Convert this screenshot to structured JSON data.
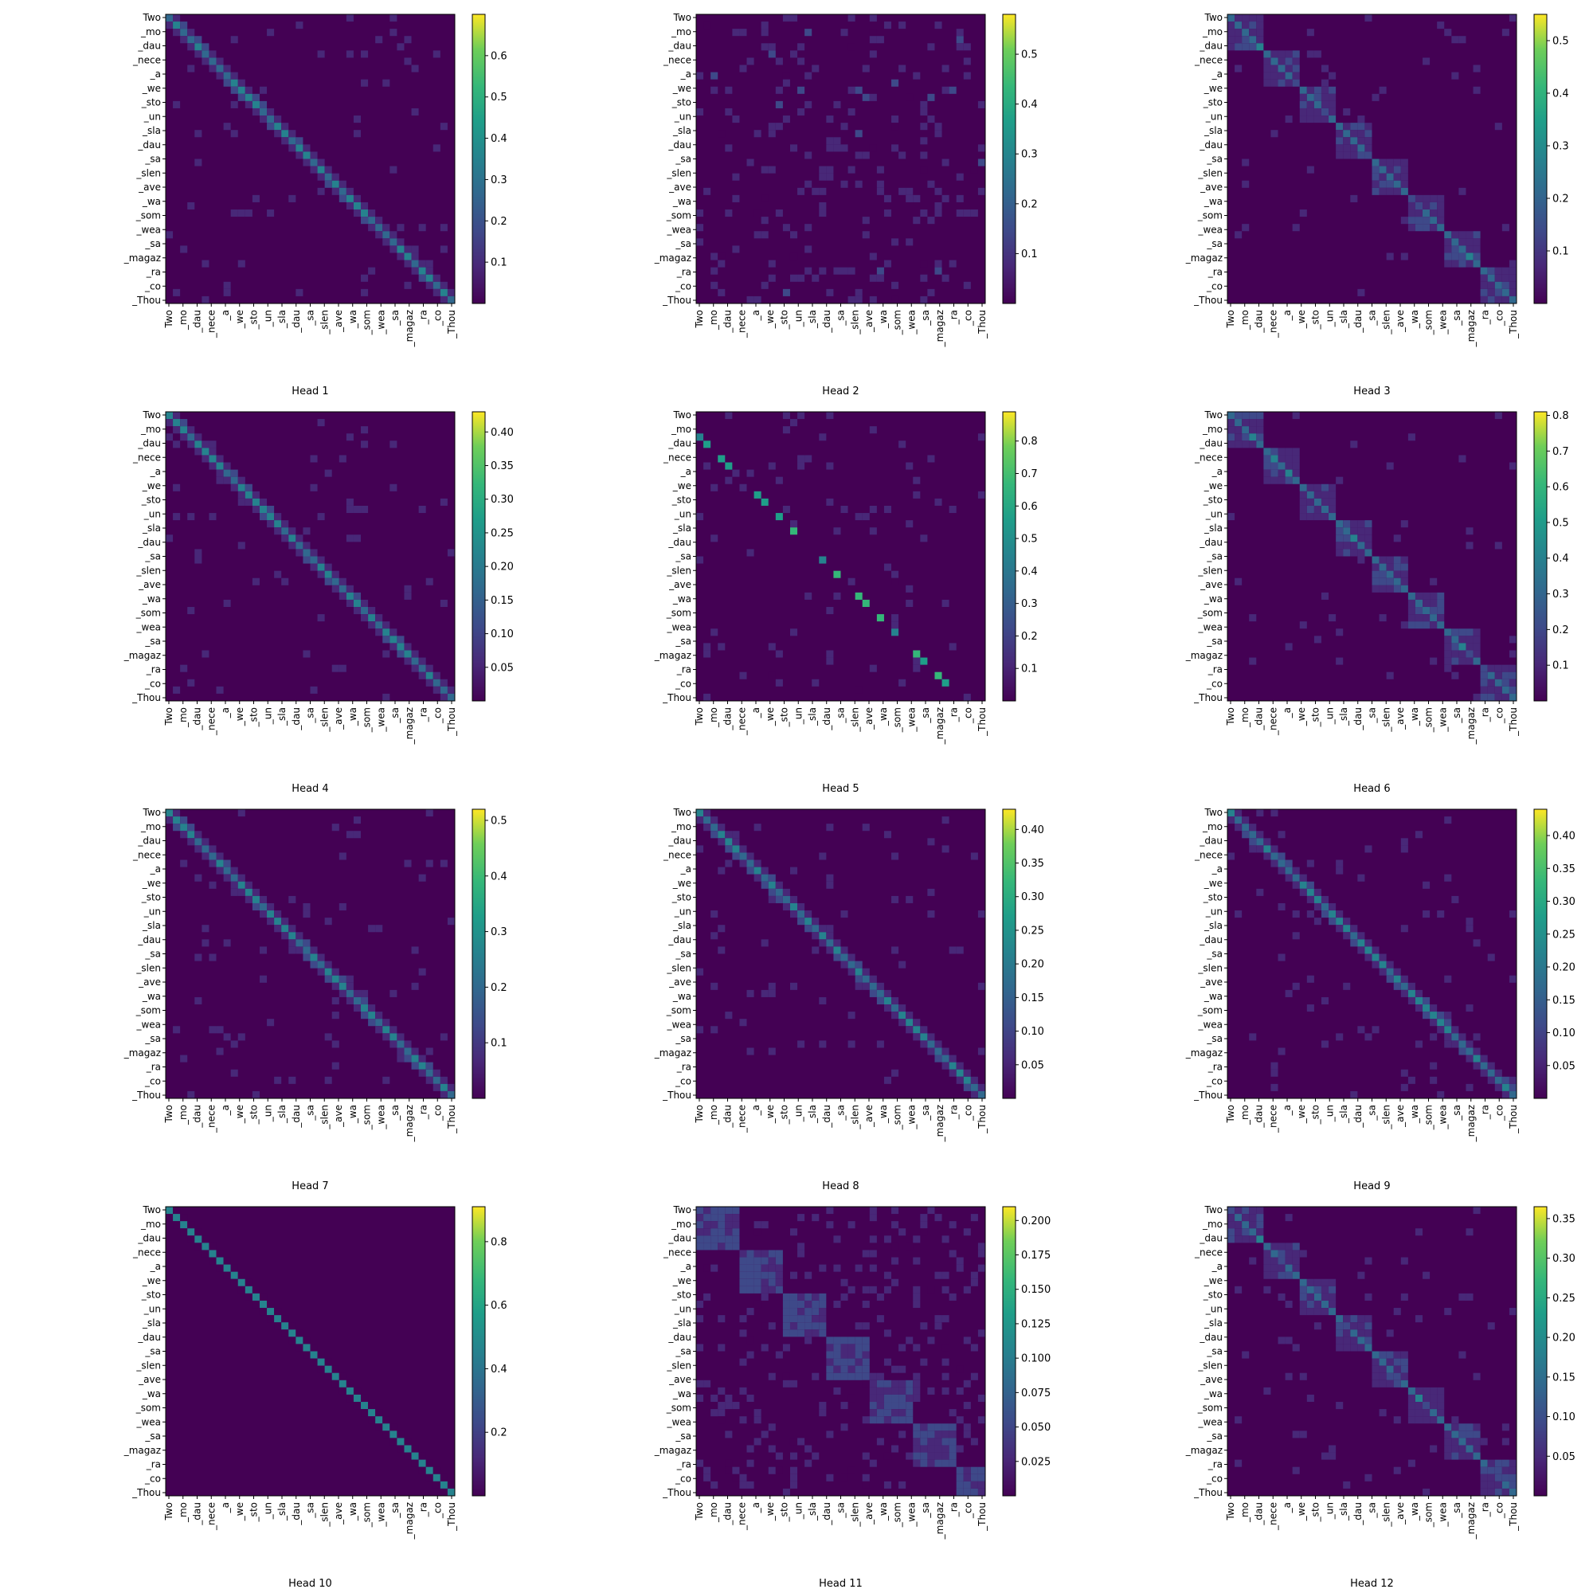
{
  "figure": {
    "tokens_visible": [
      "Two",
      "_mo",
      "_dau",
      "_nece",
      "_a",
      "_we",
      "_sto",
      "_un",
      "_sla",
      "_dau",
      "_sa",
      "_slen",
      "_ave",
      "_wa",
      "_som",
      "_wea",
      "_sa",
      "_magaz",
      "_ra",
      "_co",
      "_Thou"
    ]
  },
  "chart_data": [
    {
      "type": "heatmap",
      "title": "",
      "xlabel": "Head 1",
      "colorbar": {
        "ticks": [
          0.1,
          0.2,
          0.3,
          0.4,
          0.5,
          0.6
        ],
        "vmin": 0.0,
        "vmax": 0.7
      },
      "pattern": "diagonal"
    },
    {
      "type": "heatmap",
      "title": "",
      "xlabel": "Head 2",
      "colorbar": {
        "ticks": [
          0.1,
          0.2,
          0.3,
          0.4,
          0.5
        ],
        "vmin": 0.0,
        "vmax": 0.58
      },
      "pattern": "diffuse"
    },
    {
      "type": "heatmap",
      "title": "",
      "xlabel": "Head 3",
      "colorbar": {
        "ticks": [
          0.1,
          0.2,
          0.3,
          0.4,
          0.5
        ],
        "vmin": 0.0,
        "vmax": 0.55
      },
      "pattern": "blocky-diagonal"
    },
    {
      "type": "heatmap",
      "title": "",
      "xlabel": "Head 4",
      "colorbar": {
        "ticks": [
          0.05,
          0.1,
          0.15,
          0.2,
          0.25,
          0.3,
          0.35,
          0.4
        ],
        "vmin": 0.0,
        "vmax": 0.43
      },
      "pattern": "diagonal"
    },
    {
      "type": "heatmap",
      "title": "",
      "xlabel": "Head 5",
      "colorbar": {
        "ticks": [
          0.1,
          0.2,
          0.3,
          0.4,
          0.5,
          0.6,
          0.7,
          0.8
        ],
        "vmin": 0.0,
        "vmax": 0.89
      },
      "pattern": "offset-diagonal"
    },
    {
      "type": "heatmap",
      "title": "",
      "xlabel": "Head 6",
      "colorbar": {
        "ticks": [
          0.1,
          0.2,
          0.3,
          0.4,
          0.5,
          0.6,
          0.7,
          0.8
        ],
        "vmin": 0.0,
        "vmax": 0.81
      },
      "pattern": "blocky-diagonal"
    },
    {
      "type": "heatmap",
      "title": "",
      "xlabel": "Head 7",
      "colorbar": {
        "ticks": [
          0.1,
          0.2,
          0.3,
          0.4,
          0.5
        ],
        "vmin": 0.0,
        "vmax": 0.52
      },
      "pattern": "diagonal"
    },
    {
      "type": "heatmap",
      "title": "",
      "xlabel": "Head 8",
      "colorbar": {
        "ticks": [
          0.05,
          0.1,
          0.15,
          0.2,
          0.25,
          0.3,
          0.35,
          0.4
        ],
        "vmin": 0.0,
        "vmax": 0.43
      },
      "pattern": "diagonal"
    },
    {
      "type": "heatmap",
      "title": "",
      "xlabel": "Head 9",
      "colorbar": {
        "ticks": [
          0.05,
          0.1,
          0.15,
          0.2,
          0.25,
          0.3,
          0.35,
          0.4
        ],
        "vmin": 0.0,
        "vmax": 0.44
      },
      "pattern": "diagonal"
    },
    {
      "type": "heatmap",
      "title": "",
      "xlabel": "Head 10",
      "colorbar": {
        "ticks": [
          0.2,
          0.4,
          0.6,
          0.8
        ],
        "vmin": 0.0,
        "vmax": 0.91
      },
      "pattern": "sharp-diagonal"
    },
    {
      "type": "heatmap",
      "title": "",
      "xlabel": "Head 11",
      "colorbar": {
        "ticks": [
          0.025,
          0.05,
          0.075,
          0.1,
          0.125,
          0.15,
          0.175,
          0.2
        ],
        "vmin": 0.0,
        "vmax": 0.21
      },
      "pattern": "blocky-diffuse"
    },
    {
      "type": "heatmap",
      "title": "",
      "xlabel": "Head 12",
      "colorbar": {
        "ticks": [
          0.05,
          0.1,
          0.15,
          0.2,
          0.25,
          0.3,
          0.35
        ],
        "vmin": 0.0,
        "vmax": 0.365
      },
      "pattern": "blocky-diagonal"
    }
  ]
}
